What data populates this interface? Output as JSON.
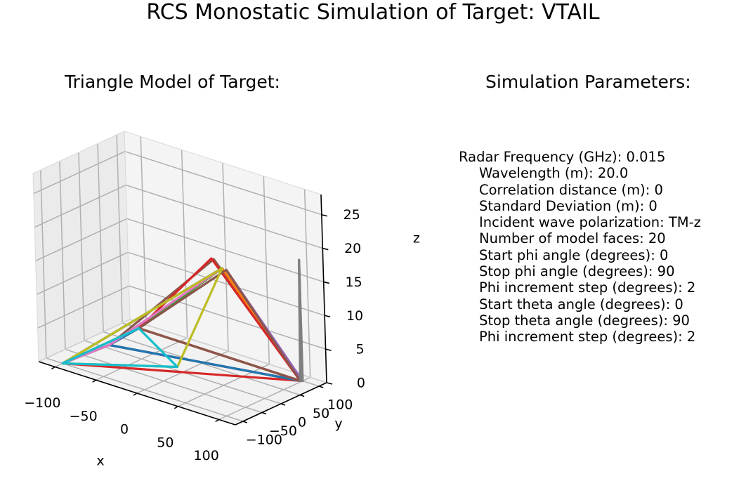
{
  "figure": {
    "title": "RCS Monostatic Simulation of Target: VTAIL",
    "left_title": "Triangle Model of Target:",
    "right_title": "Simulation Parameters:"
  },
  "parameters": [
    "Radar Frequency (GHz): 0.015",
    "Wavelength (m): 20.0",
    "Correlation distance (m): 0",
    "Standard Deviation (m): 0",
    "Incident wave polarization: TM-z",
    "Number of model faces: 20",
    "Start phi angle (degrees): 0",
    "Stop phi angle (degrees): 90",
    "Phi increment step (degrees): 2",
    "Start theta angle (degrees): 0",
    "Stop theta angle (degrees): 90",
    "Phi increment step (degrees): 2"
  ],
  "chart_data": {
    "type": "3d-wireframe",
    "xlabel": "x",
    "ylabel": "y",
    "zlabel": "z",
    "xlim": [
      -120,
      120
    ],
    "ylim": [
      -120,
      120
    ],
    "zlim": [
      0,
      28
    ],
    "xticks": [
      -100,
      -50,
      0,
      50,
      100
    ],
    "yticks": [
      -100,
      -50,
      0,
      50,
      100
    ],
    "zticks": [
      0,
      5,
      10,
      15,
      20,
      25
    ],
    "xtick_labels": [
      "−100",
      "−50",
      "0",
      "50",
      "100"
    ],
    "ytick_labels": [
      "−100",
      "−50",
      "0",
      "50",
      "100"
    ],
    "ztick_labels": [
      "0",
      "5",
      "10",
      "15",
      "20",
      "25"
    ],
    "grid": true,
    "faces": [
      {
        "color": "#1f77b4",
        "points": [
          [
            -100,
            100,
            0
          ],
          [
            -95,
            12,
            0
          ],
          [
            98,
            98,
            0
          ]
        ]
      },
      {
        "color": "#ff7f0e",
        "points": [
          [
            -100,
            100,
            0
          ],
          [
            98,
            98,
            0
          ],
          [
            100,
            -100,
            22
          ]
        ]
      },
      {
        "color": "#2ca02c",
        "points": [
          [
            -100,
            100,
            0
          ],
          [
            -100,
            -100,
            0
          ],
          [
            100,
            -100,
            22
          ]
        ]
      },
      {
        "color": "#d62728",
        "points": [
          [
            -100,
            -100,
            0
          ],
          [
            98,
            98,
            0
          ],
          [
            -95,
            12,
            0
          ]
        ]
      },
      {
        "color": "#9467bd",
        "points": [
          [
            -100,
            -100,
            0
          ],
          [
            -100,
            100,
            0
          ],
          [
            -95,
            12,
            0
          ]
        ]
      },
      {
        "color": "#8c564b",
        "points": [
          [
            -95,
            12,
            0
          ],
          [
            98,
            98,
            0
          ],
          [
            -5,
            100,
            14
          ]
        ]
      },
      {
        "color": "#e377c2",
        "points": [
          [
            -95,
            12,
            0
          ],
          [
            -100,
            100,
            0
          ],
          [
            100,
            -100,
            22
          ]
        ]
      },
      {
        "color": "#7f7f7f",
        "points": [
          [
            98,
            98,
            0
          ],
          [
            100,
            100,
            0
          ],
          [
            100,
            100,
            18
          ]
        ]
      },
      {
        "color": "#bcbd22",
        "points": [
          [
            -100,
            -100,
            0
          ],
          [
            -100,
            100,
            0
          ],
          [
            -95,
            12,
            0
          ]
        ]
      },
      {
        "color": "#17becf",
        "points": [
          [
            -100,
            -100,
            0
          ],
          [
            -95,
            12,
            0
          ],
          [
            100,
            -100,
            22
          ]
        ]
      },
      {
        "color": "#1f77b4",
        "points": [
          [
            -95,
            12,
            0
          ],
          [
            -100,
            100,
            0
          ],
          [
            98,
            98,
            0
          ]
        ]
      },
      {
        "color": "#ff7f0e",
        "points": [
          [
            -100,
            100,
            0
          ],
          [
            100,
            -100,
            22
          ],
          [
            98,
            98,
            0
          ]
        ]
      },
      {
        "color": "#2ca02c",
        "points": [
          [
            -100,
            -100,
            0
          ],
          [
            -100,
            100,
            0
          ],
          [
            100,
            -100,
            22
          ]
        ]
      },
      {
        "color": "#d62728",
        "points": [
          [
            -100,
            100,
            0
          ],
          [
            98,
            98,
            0
          ],
          [
            -8,
            100,
            14
          ]
        ]
      },
      {
        "color": "#9467bd",
        "points": [
          [
            98,
            98,
            0
          ],
          [
            100,
            100,
            0
          ],
          [
            10,
            100,
            13
          ]
        ]
      },
      {
        "color": "#8c564b",
        "points": [
          [
            -100,
            100,
            0
          ],
          [
            98,
            98,
            0
          ],
          [
            10,
            100,
            13
          ]
        ]
      },
      {
        "color": "#e377c2",
        "points": [
          [
            -95,
            12,
            0
          ],
          [
            -100,
            -100,
            0
          ],
          [
            100,
            -100,
            22
          ]
        ]
      },
      {
        "color": "#7f7f7f",
        "points": [
          [
            98,
            98,
            0
          ],
          [
            100,
            100,
            18
          ],
          [
            100,
            100,
            0
          ]
        ]
      },
      {
        "color": "#bcbd22",
        "points": [
          [
            -100,
            -100,
            0
          ],
          [
            -12,
            12,
            0
          ],
          [
            100,
            -100,
            22
          ]
        ]
      },
      {
        "color": "#17becf",
        "points": [
          [
            -100,
            -100,
            0
          ],
          [
            -12,
            12,
            0
          ],
          [
            -100,
            100,
            0
          ]
        ]
      }
    ]
  }
}
